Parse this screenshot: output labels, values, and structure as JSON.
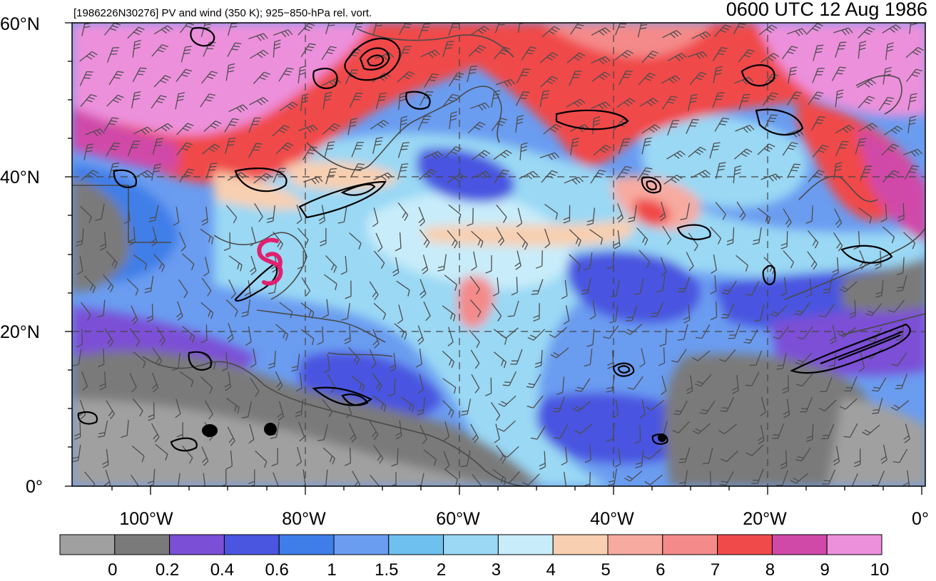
{
  "header": {
    "left_title": "[1986226N30276] PV and wind (350 K); 925−850-hPa rel. vort.",
    "right_title": "0600 UTC 12 Aug 1986"
  },
  "map": {
    "lat_labels": [
      "60°N",
      "40°N",
      "20°N",
      "0°"
    ],
    "lon_labels": [
      "100°W",
      "80°W",
      "60°W",
      "40°W",
      "20°W",
      "0°"
    ],
    "storm_symbol": "tropical-cyclone-icon",
    "storm_color": "#e0206e"
  },
  "colorbar": {
    "labels": [
      "0",
      "0.2",
      "0.4",
      "0.6",
      "1",
      "1.5",
      "2",
      "3",
      "4",
      "5",
      "6",
      "7",
      "8",
      "9",
      "10"
    ],
    "colors": [
      "#a0a0a0",
      "#7a7a7a",
      "#7b4fd6",
      "#4a55e0",
      "#3f7ee8",
      "#6a9cf0",
      "#6ec0ee",
      "#9ad8f4",
      "#c8ecfa",
      "#f8cfb0",
      "#f7aaa0",
      "#f48a8a",
      "#f04a4a",
      "#d048a8",
      "#ec90dc"
    ]
  }
}
